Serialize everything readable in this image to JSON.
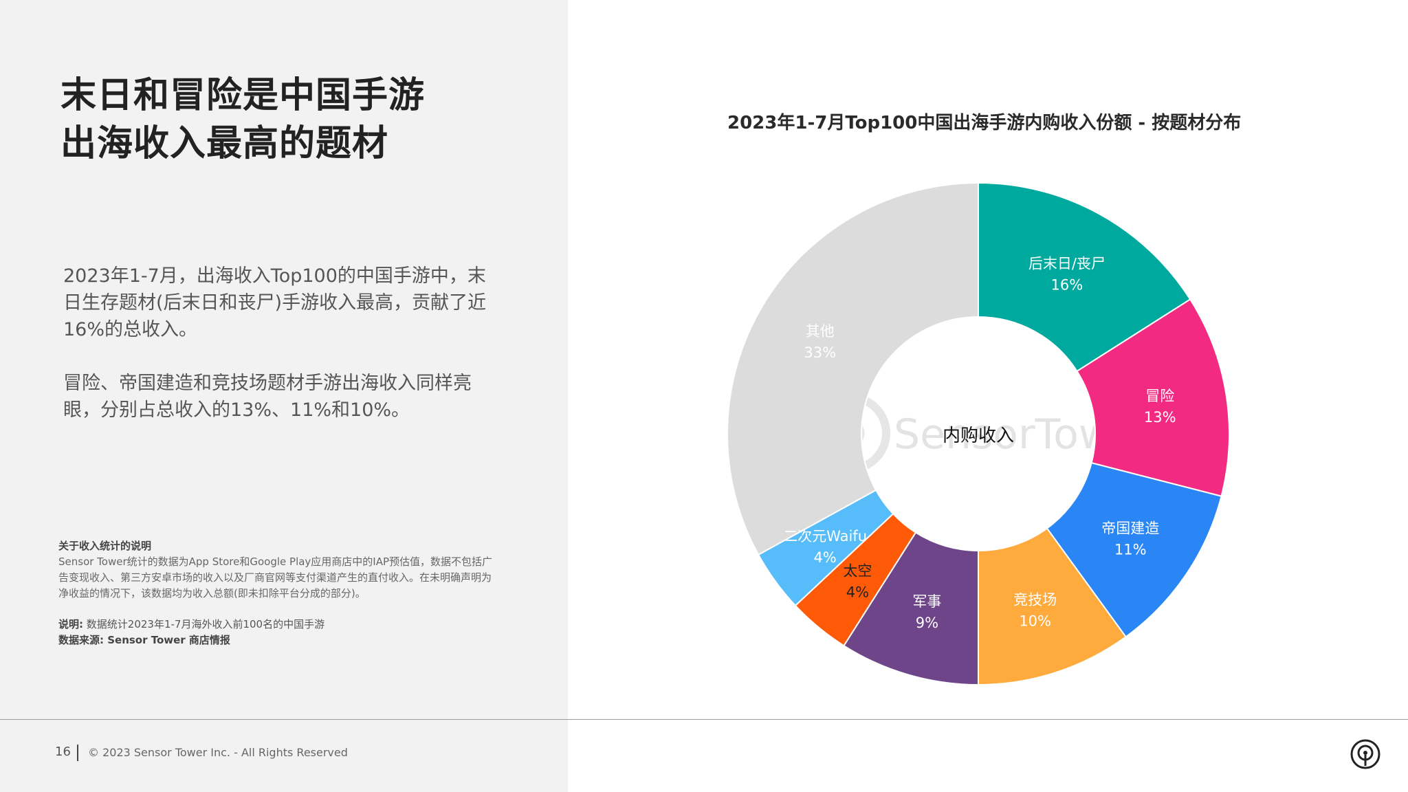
{
  "headline": [
    "末日和冒险是中国手游",
    "出海收入最高的题材"
  ],
  "paragraph1": "2023年1-7月，出海收入Top100的中国手游中，末日生存题材(后末日和丧尸)手游收入最高，贡献了近16%的总收入。",
  "paragraph2": "冒险、帝国建造和竞技场题材手游出海收入同样亮眼，分别占总收入的13%、11%和10%。",
  "note": {
    "title": "关于收入统计的说明",
    "body": "Sensor Tower统计的数据为App Store和Google Play应用商店中的IAP预估值，数据不包括广告变现收入、第三方安卓市场的收入以及厂商官网等支付渠道产生的直付收入。在未明确声明为净收益的情况下，该数据均为收入总额(即未扣除平台分成的部分)。"
  },
  "source": {
    "explain_label": "说明:",
    "explain_text": "数据统计2023年1-7月海外收入前100名的中国手游",
    "source_label": "数据来源: Sensor Tower 商店情报"
  },
  "footer": {
    "page": "16",
    "copyright": "© 2023 Sensor Tower Inc. - All Rights Reserved"
  },
  "icons": {
    "brand": "sensor-tower-logo-icon"
  },
  "watermark": "SensorTower",
  "chart_data": {
    "type": "pie",
    "title": "2023年1-7月Top100中国出海手游内购收入份额 - 按题材分布",
    "center_label": "内购收入",
    "slices": [
      {
        "label": "后末日/丧尸",
        "value": 16,
        "pct": "16%",
        "color": "#00a99d",
        "label_color": "#ffffff"
      },
      {
        "label": "冒险",
        "value": 13,
        "pct": "13%",
        "color": "#f32a82",
        "label_color": "#ffffff"
      },
      {
        "label": "帝国建造",
        "value": 11,
        "pct": "11%",
        "color": "#2b86f5",
        "label_color": "#ffffff"
      },
      {
        "label": "竞技场",
        "value": 10,
        "pct": "10%",
        "color": "#ffaa3d",
        "label_color": "#ffffff"
      },
      {
        "label": "军事",
        "value": 9,
        "pct": "9%",
        "color": "#6d4588",
        "label_color": "#ffffff"
      },
      {
        "label": "太空",
        "value": 4,
        "pct": "4%",
        "color": "#ff5a08",
        "label_color": "#222222"
      },
      {
        "label": "二次元Waifu",
        "value": 4,
        "pct": "4%",
        "color": "#56bdfa",
        "label_color": "#ffffff"
      },
      {
        "label": "其他",
        "value": 33,
        "pct": "33%",
        "color": "#dcdcdc",
        "label_color": "#ffffff"
      }
    ]
  }
}
